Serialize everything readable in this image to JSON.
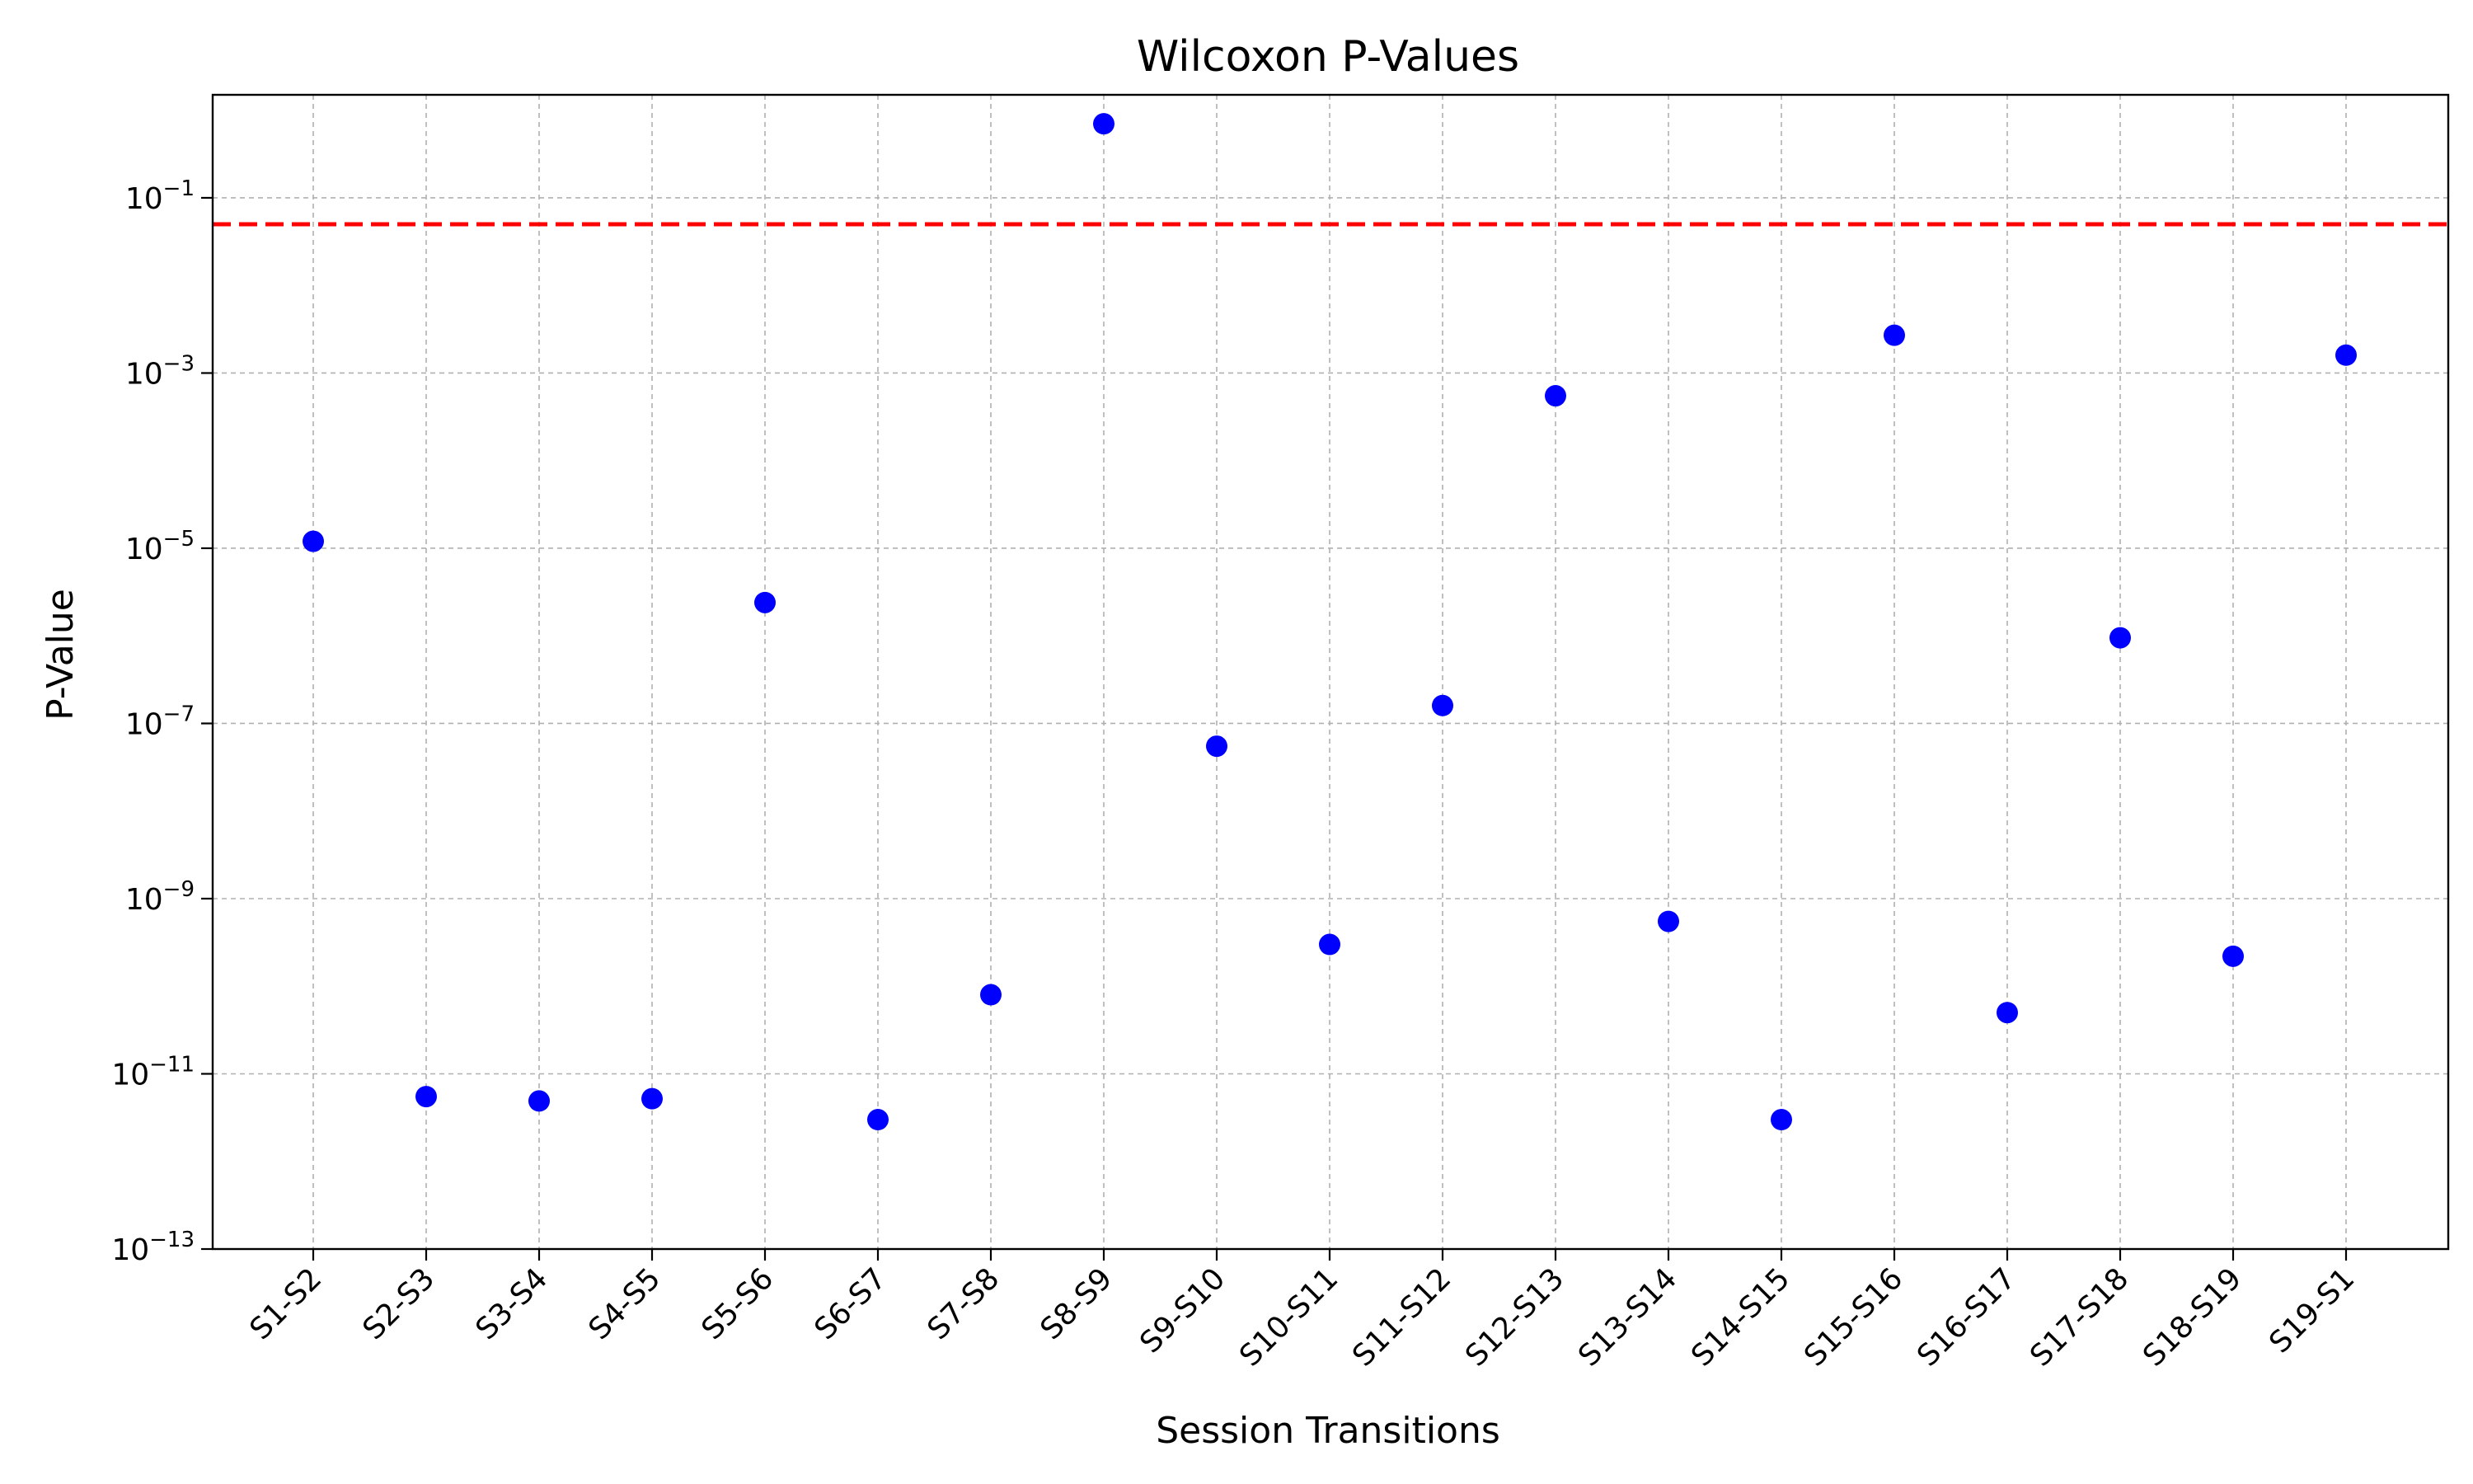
{
  "chart_data": {
    "type": "scatter",
    "title": "Wilcoxon P-Values",
    "xlabel": "Session Transitions",
    "ylabel": "P-Value",
    "yscale": "log",
    "ylim": [
      1e-13,
      1.5
    ],
    "y_ticks": [
      {
        "value": 1e-13,
        "base": "10",
        "exp": "−13"
      },
      {
        "value": 1e-11,
        "base": "10",
        "exp": "−11"
      },
      {
        "value": 1e-09,
        "base": "10",
        "exp": "−9"
      },
      {
        "value": 1e-07,
        "base": "10",
        "exp": "−7"
      },
      {
        "value": 1e-05,
        "base": "10",
        "exp": "−5"
      },
      {
        "value": 0.001,
        "base": "10",
        "exp": "−3"
      },
      {
        "value": 0.1,
        "base": "10",
        "exp": "−1"
      }
    ],
    "grid": true,
    "categories": [
      "S1-S2",
      "S2-S3",
      "S3-S4",
      "S4-S5",
      "S5-S6",
      "S6-S7",
      "S7-S8",
      "S8-S9",
      "S9-S10",
      "S10-S11",
      "S11-S12",
      "S12-S13",
      "S13-S14",
      "S14-S15",
      "S15-S16",
      "S16-S17",
      "S17-S18",
      "S18-S19",
      "S19-S1"
    ],
    "values": [
      1.2e-05,
      5.5e-12,
      4.9e-12,
      5.2e-12,
      2.4e-06,
      3e-12,
      8e-11,
      0.7,
      5.5e-08,
      3e-10,
      1.6e-07,
      0.00055,
      5.5e-10,
      3e-12,
      0.0027,
      5e-11,
      9.5e-07,
      2.2e-10,
      0.0016
    ],
    "marker_color": "#0000ff",
    "threshold": {
      "value": 0.05,
      "color": "#ff0000",
      "style": "dashed"
    }
  }
}
